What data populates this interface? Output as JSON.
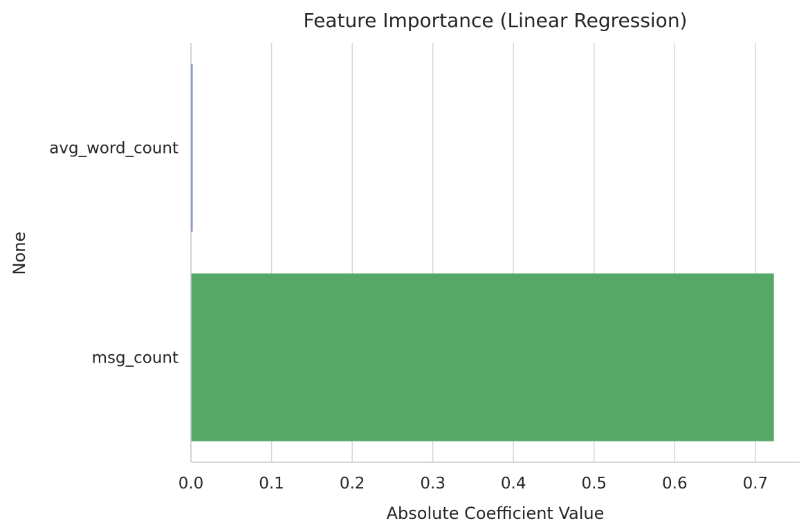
{
  "chart_data": {
    "type": "bar",
    "orientation": "horizontal",
    "title": "Feature Importance (Linear Regression)",
    "xlabel": "Absolute Coefficient Value",
    "ylabel": "None",
    "categories": [
      "avg_word_count",
      "msg_count"
    ],
    "values": [
      0.002,
      0.723
    ],
    "xlim": [
      0,
      0.755
    ],
    "xticks": [
      0.0,
      0.1,
      0.2,
      0.3,
      0.4,
      0.5,
      0.6,
      0.7
    ],
    "xtick_labels": [
      "0.0",
      "0.1",
      "0.2",
      "0.3",
      "0.4",
      "0.5",
      "0.6",
      "0.7"
    ],
    "grid": "vertical",
    "legend": "none",
    "colors": {
      "bars": [
        "#4c72b0",
        "#55a868"
      ],
      "grid": "#d6d6d6",
      "spine": "#cccccc",
      "text": "#262626"
    }
  }
}
